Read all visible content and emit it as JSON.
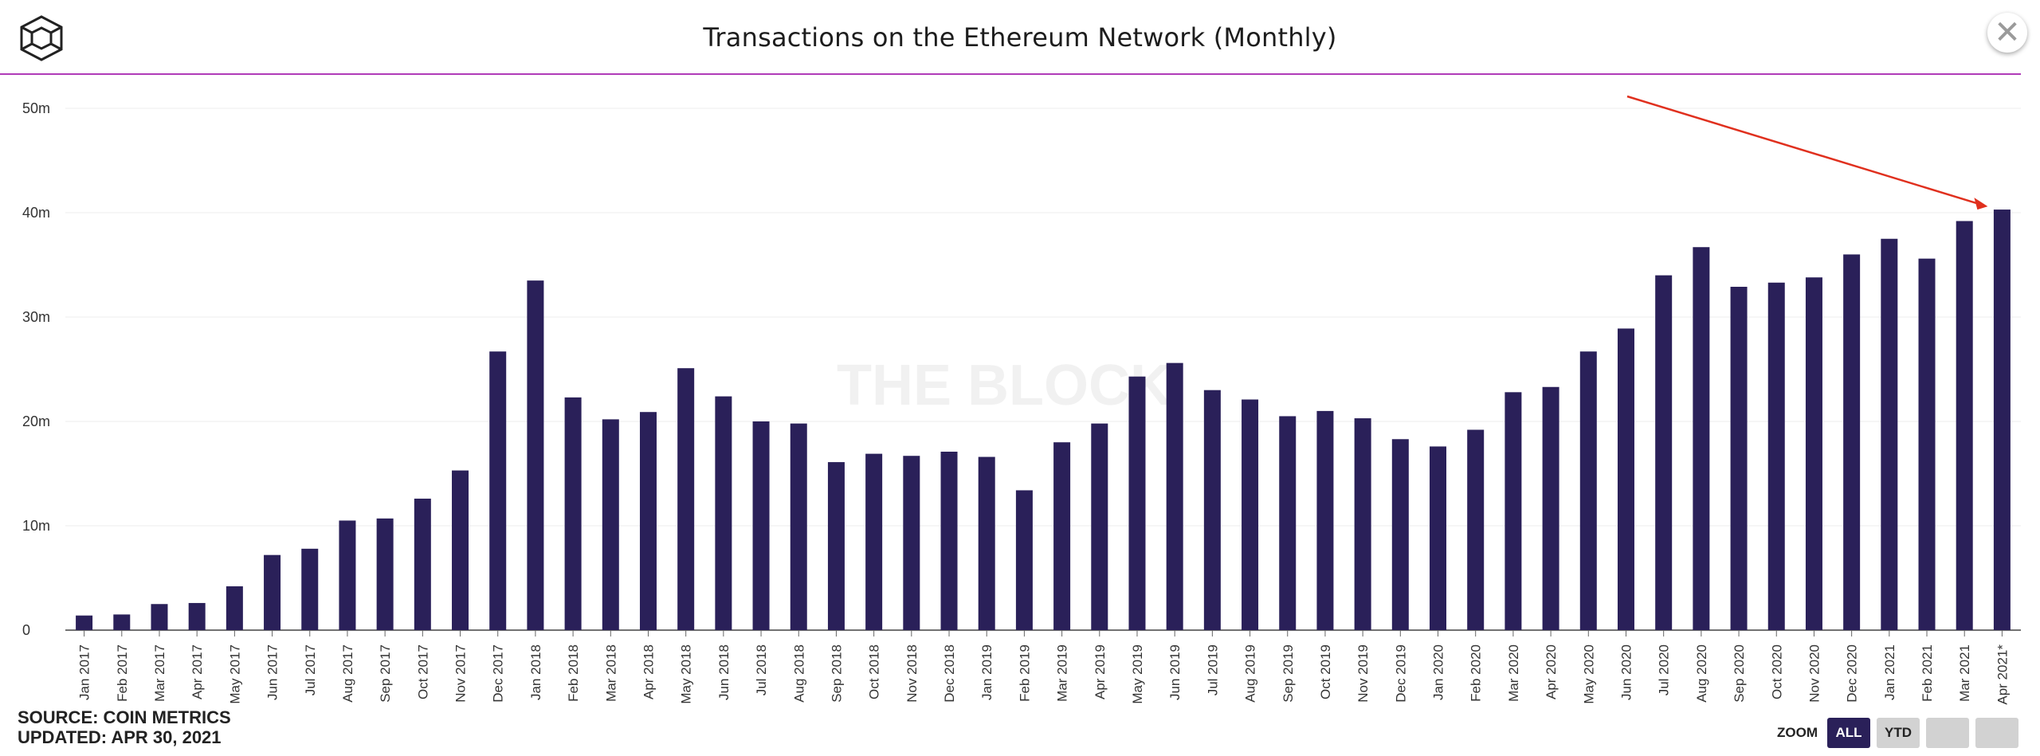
{
  "header": {
    "title": "Transactions on the Ethereum Network (Monthly)",
    "close_icon": "close-icon",
    "logo_icon": "cube-logo-icon"
  },
  "watermark": "THE BLOCK",
  "footer": {
    "source": "SOURCE: COIN METRICS",
    "updated": "UPDATED: APR 30, 2021"
  },
  "zoom": {
    "label": "ZOOM",
    "buttons": [
      "ALL",
      "YTD",
      "",
      ""
    ],
    "active": "ALL"
  },
  "colors": {
    "bar": "#2a2059",
    "rule": "#b03bb8",
    "annotation_arrow": "#e0301e"
  },
  "chart_data": {
    "type": "bar",
    "title": "Transactions on the Ethereum Network (Monthly)",
    "xlabel": "",
    "ylabel": "",
    "ylim": [
      0,
      50
    ],
    "y_unit": "m",
    "yticks": [
      "0",
      "10m",
      "20m",
      "30m",
      "40m",
      "50m"
    ],
    "grid": true,
    "annotation": "red arrow pointing to Apr 2021* bar",
    "categories": [
      "Jan 2017",
      "Feb 2017",
      "Mar 2017",
      "Apr 2017",
      "May 2017",
      "Jun 2017",
      "Jul 2017",
      "Aug 2017",
      "Sep 2017",
      "Oct 2017",
      "Nov 2017",
      "Dec 2017",
      "Jan 2018",
      "Feb 2018",
      "Mar 2018",
      "Apr 2018",
      "May 2018",
      "Jun 2018",
      "Jul 2018",
      "Aug 2018",
      "Sep 2018",
      "Oct 2018",
      "Nov 2018",
      "Dec 2018",
      "Jan 2019",
      "Feb 2019",
      "Mar 2019",
      "Apr 2019",
      "May 2019",
      "Jun 2019",
      "Jul 2019",
      "Aug 2019",
      "Sep 2019",
      "Oct 2019",
      "Nov 2019",
      "Dec 2019",
      "Jan 2020",
      "Feb 2020",
      "Mar 2020",
      "Apr 2020",
      "May 2020",
      "Jun 2020",
      "Jul 2020",
      "Aug 2020",
      "Sep 2020",
      "Oct 2020",
      "Nov 2020",
      "Dec 2020",
      "Jan 2021",
      "Feb 2021",
      "Mar 2021",
      "Apr 2021*"
    ],
    "values": [
      1.4,
      1.5,
      2.5,
      2.6,
      4.2,
      7.2,
      7.8,
      10.5,
      10.7,
      12.6,
      15.3,
      26.7,
      33.5,
      22.3,
      20.2,
      20.9,
      25.1,
      22.4,
      20.0,
      19.8,
      16.1,
      16.9,
      16.7,
      17.1,
      16.6,
      13.4,
      18.0,
      19.8,
      24.3,
      25.6,
      23.0,
      22.1,
      20.5,
      21.0,
      20.3,
      18.3,
      17.6,
      19.2,
      22.8,
      23.3,
      26.7,
      28.9,
      34.0,
      36.7,
      32.9,
      33.3,
      33.8,
      36.0,
      37.5,
      35.6,
      39.2,
      40.3
    ]
  }
}
